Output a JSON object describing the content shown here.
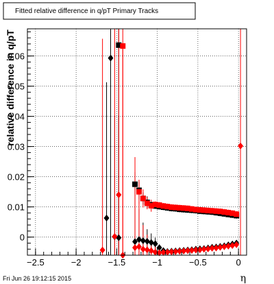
{
  "chart_data": {
    "type": "scatter",
    "title": "Fitted relative difference in q/pT  Primary Tracks",
    "xlabel": "η",
    "ylabel": "relative difference in q/pT",
    "xlim": [
      -2.6,
      0.1
    ],
    "ylim": [
      -0.006,
      0.069
    ],
    "x_ticks": [
      -2.5,
      -2,
      -1.5,
      -1,
      -0.5,
      0
    ],
    "x_tick_labels": [
      "−2.5",
      "−2",
      "−1.5",
      "−1",
      "−0.5",
      "0"
    ],
    "y_ticks": [
      0,
      0.01,
      0.02,
      0.03,
      0.04,
      0.05,
      0.06
    ],
    "y_tick_labels": [
      "0",
      "0.01",
      "0.02",
      "0.03",
      "0.04",
      "0.05",
      "0.06"
    ],
    "grid": true,
    "footer": "Fri Jun 26 19:12:15 2015",
    "series": [
      {
        "marker": "diamond",
        "color": "#000000",
        "x": [
          -1.625,
          -1.575,
          -1.525,
          -1.475,
          -1.275,
          -1.225,
          -1.175,
          -1.125,
          -1.075,
          -1.025,
          -0.975,
          -0.925,
          -0.875,
          -0.825,
          -0.775,
          -0.725,
          -0.675,
          -0.625,
          -0.575,
          -0.525,
          -0.475,
          -0.425,
          -0.375,
          -0.325,
          -0.275,
          -0.225,
          -0.175,
          -0.125,
          -0.075,
          -0.025
        ],
        "y": [
          0.0063,
          0.0593,
          0.0001,
          -0.0002,
          -0.0015,
          -0.0008,
          -0.0012,
          -0.0014,
          -0.0018,
          -0.0022,
          -0.0035,
          -0.0045,
          -0.0048,
          -0.0047,
          -0.0046,
          -0.0045,
          -0.0044,
          -0.0043,
          -0.0042,
          -0.004,
          -0.0039,
          -0.0038,
          -0.0036,
          -0.0034,
          -0.0033,
          -0.0031,
          -0.0029,
          -0.0026,
          -0.0023,
          -0.002
        ],
        "err": [
          0.045,
          0.07,
          0.04,
          0.04,
          0.018,
          0.01,
          0.006,
          0.004,
          0.003,
          0.002,
          0.001,
          0.001,
          0.001,
          0.001,
          0.001,
          0.001,
          0.001,
          0.001,
          0.001,
          0.001,
          0.001,
          0.001,
          0.001,
          0.001,
          0.001,
          0.001,
          0.001,
          0.001,
          0.001,
          0.001
        ]
      },
      {
        "marker": "square",
        "color": "#000000",
        "x": [
          -1.475,
          -1.275,
          -1.225,
          -1.175,
          -1.125,
          -1.075,
          -1.025,
          -0.975,
          -0.925,
          -0.875,
          -0.825,
          -0.775,
          -0.725,
          -0.675,
          -0.625,
          -0.575,
          -0.525,
          -0.475,
          -0.425,
          -0.375,
          -0.325,
          -0.275,
          -0.225,
          -0.175,
          -0.125,
          -0.075,
          -0.025
        ],
        "y": [
          0.0636,
          0.0175,
          0.0155,
          0.0128,
          0.0115,
          0.0107,
          0.0103,
          0.0101,
          0.0099,
          0.0097,
          0.0095,
          0.0094,
          0.0092,
          0.0091,
          0.009,
          0.0089,
          0.0088,
          0.0086,
          0.0085,
          0.0084,
          0.0083,
          0.0081,
          0.0079,
          0.0077,
          0.0075,
          0.0073,
          0.0071
        ],
        "err": [
          0.07,
          0.004,
          0.003,
          0.002,
          0.002,
          0.001,
          0.001,
          0.001,
          0.001,
          0.001,
          0.001,
          0.001,
          0.001,
          0.001,
          0.001,
          0.001,
          0.001,
          0.001,
          0.001,
          0.001,
          0.001,
          0.001,
          0.001,
          0.001,
          0.001,
          0.001,
          0.001
        ]
      },
      {
        "marker": "diamond",
        "color": "#ff0000",
        "x": [
          -1.675,
          -1.525,
          -1.475,
          -1.425,
          -1.275,
          -1.225,
          -1.175,
          -1.125,
          -1.075,
          -1.025,
          -0.975,
          -0.925,
          -0.875,
          -0.825,
          -0.775,
          -0.725,
          -0.675,
          -0.625,
          -0.575,
          -0.525,
          -0.475,
          -0.425,
          -0.375,
          -0.325,
          -0.275,
          -0.225,
          -0.175,
          -0.125,
          -0.075,
          -0.025,
          0.025
        ],
        "y": [
          -0.0043,
          0.0002,
          0.014,
          -0.006,
          -0.0035,
          -0.0032,
          -0.004,
          -0.0042,
          -0.0045,
          -0.005,
          -0.0052,
          -0.0051,
          -0.005,
          -0.0049,
          -0.0048,
          -0.0047,
          -0.0046,
          -0.0045,
          -0.0044,
          -0.0043,
          -0.0042,
          -0.004,
          -0.0039,
          -0.0037,
          -0.0036,
          -0.0034,
          -0.0032,
          -0.003,
          -0.0028,
          -0.0025,
          0.0302
        ],
        "err": [
          0.07,
          0.07,
          0.07,
          0.07,
          0.03,
          0.015,
          0.008,
          0.005,
          0.003,
          0.002,
          0.001,
          0.001,
          0.001,
          0.001,
          0.001,
          0.001,
          0.001,
          0.001,
          0.001,
          0.001,
          0.001,
          0.001,
          0.001,
          0.001,
          0.001,
          0.001,
          0.001,
          0.001,
          0.001,
          0.001,
          0.07
        ]
      },
      {
        "marker": "square",
        "color": "#ff0000",
        "x": [
          -1.425,
          -1.225,
          -1.175,
          -1.125,
          -1.075,
          -1.025,
          -0.975,
          -0.925,
          -0.875,
          -0.825,
          -0.775,
          -0.725,
          -0.675,
          -0.625,
          -0.575,
          -0.525,
          -0.475,
          -0.425,
          -0.375,
          -0.325,
          -0.275,
          -0.225,
          -0.175,
          -0.125,
          -0.075,
          -0.025
        ],
        "y": [
          0.0633,
          0.015,
          0.0128,
          0.0112,
          0.0104,
          0.0108,
          0.0106,
          0.0103,
          0.0101,
          0.0099,
          0.0098,
          0.0097,
          0.0096,
          0.0095,
          0.0093,
          0.0091,
          0.009,
          0.0089,
          0.0088,
          0.0087,
          0.0086,
          0.0085,
          0.0083,
          0.0081,
          0.0079,
          0.0076
        ],
        "err": [
          0.07,
          0.004,
          0.003,
          0.002,
          0.002,
          0.001,
          0.001,
          0.001,
          0.001,
          0.001,
          0.001,
          0.001,
          0.001,
          0.001,
          0.001,
          0.001,
          0.001,
          0.001,
          0.001,
          0.001,
          0.001,
          0.001,
          0.001,
          0.001,
          0.001,
          0.001
        ]
      }
    ]
  }
}
